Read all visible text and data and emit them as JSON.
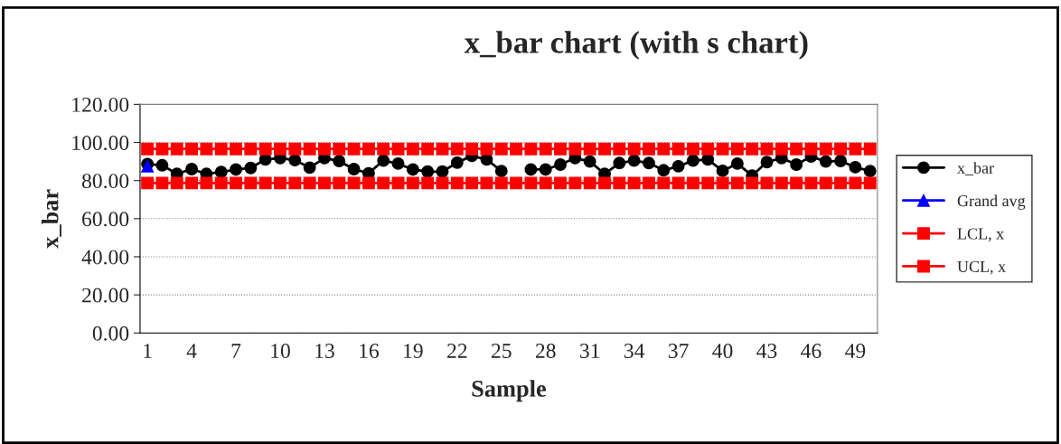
{
  "chart_data": {
    "type": "line",
    "title": "x_bar chart (with s chart)",
    "xlabel": "Sample",
    "ylabel": "x_bar",
    "categories": [
      "1",
      null,
      null,
      "4",
      null,
      null,
      "7",
      null,
      null,
      "10",
      null,
      null,
      "13",
      null,
      null,
      "16",
      null,
      null,
      "19",
      null,
      null,
      "22",
      null,
      null,
      "25",
      null,
      null,
      "28",
      null,
      null,
      "31",
      null,
      null,
      "34",
      null,
      null,
      "37",
      null,
      null,
      "40",
      null,
      null,
      "43",
      null,
      null,
      "46",
      null,
      null,
      "49",
      null
    ],
    "series": [
      {
        "name": "x_bar",
        "color": "#000000",
        "marker": "circle",
        "values": [
          88.7,
          88.0,
          83.5,
          86.0,
          83.5,
          84.5,
          85.8,
          86.6,
          91.1,
          91.8,
          90.7,
          86.8,
          91.8,
          90.2,
          86.0,
          83.8,
          90.5,
          88.9,
          85.8,
          84.7,
          84.7,
          89.4,
          93.0,
          91.1,
          85.0,
          null,
          85.8,
          85.8,
          88.4,
          91.8,
          90.0,
          83.5,
          89.2,
          90.5,
          89.2,
          85.4,
          87.5,
          90.5,
          91.1,
          85.1,
          88.9,
          82.6,
          89.7,
          91.8,
          88.4,
          92.6,
          90.0,
          90.3,
          87.0,
          85.0
        ]
      },
      {
        "name": "Grand avg",
        "color": "#0000ff",
        "marker": "triangle",
        "values": [
          87.5,
          null,
          null,
          null,
          null,
          null,
          null,
          null,
          null,
          null,
          null,
          null,
          null,
          null,
          null,
          null,
          null,
          null,
          null,
          null,
          null,
          null,
          null,
          null,
          null,
          null,
          null,
          null,
          null,
          null,
          null,
          null,
          null,
          null,
          null,
          null,
          null,
          null,
          null,
          null,
          null,
          null,
          null,
          null,
          null,
          null,
          null,
          null,
          null,
          null
        ]
      },
      {
        "name": "LCL, x",
        "color": "#ff0000",
        "marker": "square",
        "values": [
          78.7,
          78.7,
          78.7,
          78.7,
          78.7,
          78.7,
          78.7,
          78.7,
          78.7,
          78.7,
          78.7,
          78.7,
          78.7,
          78.7,
          78.7,
          78.7,
          78.7,
          78.7,
          78.7,
          78.7,
          78.7,
          78.7,
          78.7,
          78.7,
          78.7,
          78.7,
          78.7,
          78.7,
          78.7,
          78.7,
          78.7,
          78.7,
          78.7,
          78.7,
          78.7,
          78.7,
          78.7,
          78.7,
          78.7,
          78.7,
          78.7,
          78.7,
          78.7,
          78.7,
          78.7,
          78.7,
          78.7,
          78.7,
          78.7,
          78.7
        ]
      },
      {
        "name": "UCL, x",
        "color": "#ff0000",
        "marker": "square",
        "values": [
          96.6,
          96.6,
          96.6,
          96.6,
          96.6,
          96.6,
          96.6,
          96.6,
          96.6,
          96.6,
          96.6,
          96.6,
          96.6,
          96.6,
          96.6,
          96.6,
          96.6,
          96.6,
          96.6,
          96.6,
          96.6,
          96.6,
          96.6,
          96.6,
          96.6,
          96.6,
          96.6,
          96.6,
          96.6,
          96.6,
          96.6,
          96.6,
          96.6,
          96.6,
          96.6,
          96.6,
          96.6,
          96.6,
          96.6,
          96.6,
          96.6,
          96.6,
          96.6,
          96.6,
          96.6,
          96.6,
          96.6,
          96.6,
          96.6,
          96.6
        ]
      }
    ],
    "ylim": [
      0,
      120
    ],
    "yticks": [
      {
        "value": 0,
        "label": "0.00"
      },
      {
        "value": 20,
        "label": "20.00"
      },
      {
        "value": 40,
        "label": "40.00"
      },
      {
        "value": 60,
        "label": "60.00"
      },
      {
        "value": 80,
        "label": "80.00"
      },
      {
        "value": 100,
        "label": "100.00"
      },
      {
        "value": 120,
        "label": "120.00"
      }
    ],
    "grid": "y",
    "legend": "right",
    "line_style": "solid"
  }
}
